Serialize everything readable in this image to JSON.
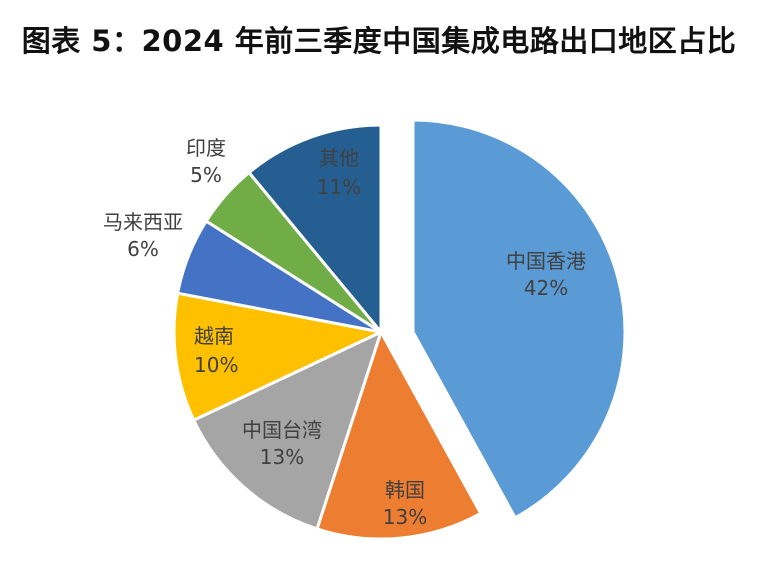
{
  "title": "图表 5：2024 年前三季度中国集成电路出口地区占比",
  "chart_data": {
    "type": "pie",
    "title": "图表 5：2024 年前三季度中国集成电路出口地区占比",
    "categories": [
      "中国香港",
      "韩国",
      "中国台湾",
      "越南",
      "马来西亚",
      "印度",
      "其他"
    ],
    "values": [
      42,
      13,
      13,
      10,
      6,
      5,
      11
    ],
    "unit": "%",
    "colors": [
      "#5B9BD5",
      "#ED7D31",
      "#A5A5A5",
      "#FFC000",
      "#4472C4",
      "#70AD47",
      "#255E91"
    ],
    "exploded": [
      "中国香港"
    ],
    "start_angle": "12 o'clock, clockwise",
    "legend": "none (data labels on/near slices)"
  },
  "labels": [
    {
      "name": "中国香港",
      "pct": "42%"
    },
    {
      "name": "韩国",
      "pct": "13%"
    },
    {
      "name": "中国台湾",
      "pct": "13%"
    },
    {
      "name": "越南",
      "pct": "10%"
    },
    {
      "name": "马来西亚",
      "pct": "6%"
    },
    {
      "name": "印度",
      "pct": "5%"
    },
    {
      "name": "其他",
      "pct": "11%"
    }
  ]
}
